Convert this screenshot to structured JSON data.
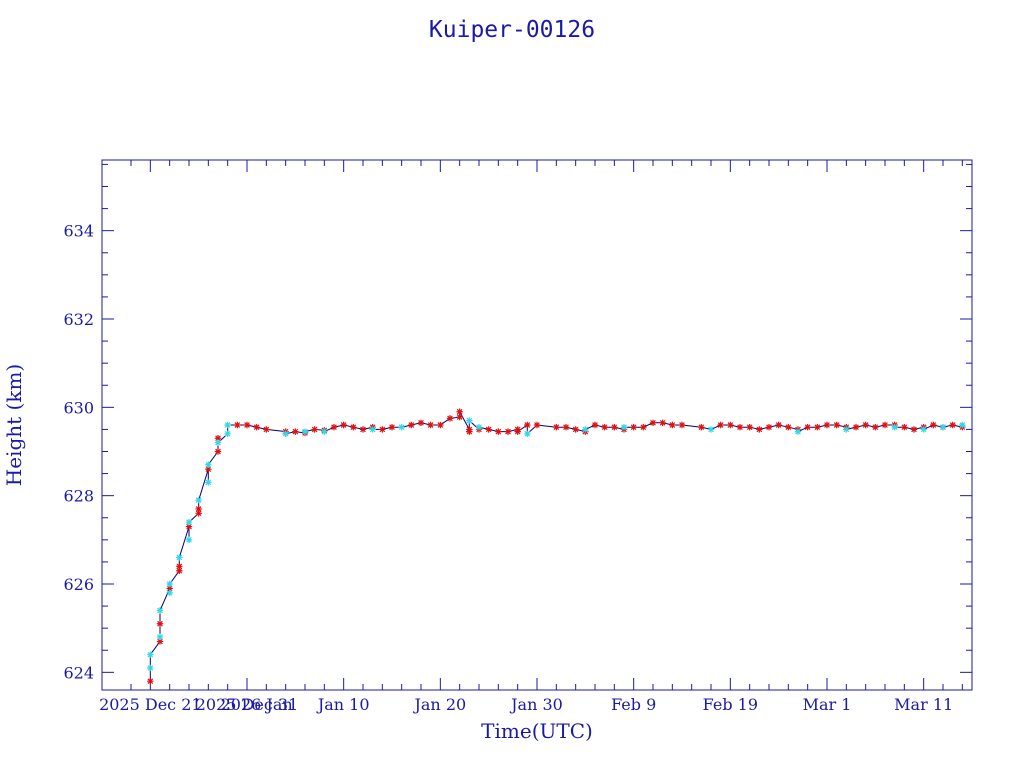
{
  "chart_data": {
    "type": "scatter",
    "title": "Kuiper-00126",
    "xlabel": "Time(UTC)",
    "ylabel": "Height (km)",
    "xlim": [
      "2025-12-16",
      "2026-03-16"
    ],
    "ylim": [
      623.6,
      635.6
    ],
    "x_tick_labels": [
      {
        "date": "2025-12-21",
        "label": "2025 Dec 21"
      },
      {
        "date": "2025-12-31",
        "label": "2025 Dec 31"
      },
      {
        "date": "2026-01-01",
        "label": "2026 Jan"
      },
      {
        "date": "2026-01-10",
        "label": "Jan 10"
      },
      {
        "date": "2026-01-20",
        "label": "Jan 20"
      },
      {
        "date": "2026-01-30",
        "label": "Jan 30"
      },
      {
        "date": "2026-02-09",
        "label": "Feb  9"
      },
      {
        "date": "2026-02-19",
        "label": "Feb 19"
      },
      {
        "date": "2026-03-01",
        "label": "Mar  1"
      },
      {
        "date": "2026-03-11",
        "label": "Mar 11"
      }
    ],
    "y_ticks": [
      624,
      626,
      628,
      630,
      632,
      634
    ],
    "grid": false,
    "colors": {
      "axis": "#1a1aa6",
      "line": "#000080",
      "marker_a": "#e01010",
      "marker_b": "#30d8e8"
    },
    "series": [
      {
        "marker": "star",
        "points": [
          [
            "2025-12-21",
            623.8
          ],
          [
            "2025-12-22",
            624.7
          ],
          [
            "2025-12-22",
            625.1
          ],
          [
            "2025-12-23",
            625.9
          ],
          [
            "2025-12-24",
            626.3
          ],
          [
            "2025-12-24",
            626.4
          ],
          [
            "2025-12-25",
            627.3
          ],
          [
            "2025-12-26",
            627.6
          ],
          [
            "2025-12-26",
            627.7
          ],
          [
            "2025-12-27",
            628.6
          ],
          [
            "2025-12-28",
            629.0
          ],
          [
            "2025-12-28",
            629.3
          ],
          [
            "2025-12-30",
            629.6
          ],
          [
            "2025-12-31",
            629.6
          ],
          [
            "2026-01-01",
            629.55
          ],
          [
            "2026-01-02",
            629.5
          ],
          [
            "2026-01-04",
            629.45
          ],
          [
            "2026-01-05",
            629.45
          ],
          [
            "2026-01-06",
            629.42
          ],
          [
            "2026-01-07",
            629.5
          ],
          [
            "2026-01-08",
            629.48
          ],
          [
            "2026-01-09",
            629.55
          ],
          [
            "2026-01-10",
            629.6
          ],
          [
            "2026-01-11",
            629.55
          ],
          [
            "2026-01-12",
            629.5
          ],
          [
            "2026-01-13",
            629.55
          ],
          [
            "2026-01-14",
            629.5
          ],
          [
            "2026-01-15",
            629.55
          ],
          [
            "2026-01-17",
            629.6
          ],
          [
            "2026-01-18",
            629.65
          ],
          [
            "2026-01-19",
            629.6
          ],
          [
            "2026-01-20",
            629.6
          ],
          [
            "2026-01-21",
            629.75
          ],
          [
            "2026-01-22",
            629.78
          ],
          [
            "2026-01-22",
            629.9
          ],
          [
            "2026-01-23",
            629.5
          ],
          [
            "2026-01-23",
            629.45
          ],
          [
            "2026-01-24",
            629.5
          ],
          [
            "2026-01-25",
            629.5
          ],
          [
            "2026-01-26",
            629.45
          ],
          [
            "2026-01-27",
            629.45
          ],
          [
            "2026-01-28",
            629.5
          ],
          [
            "2026-01-28",
            629.45
          ],
          [
            "2026-01-29",
            629.6
          ],
          [
            "2026-01-30",
            629.6
          ],
          [
            "2026-02-01",
            629.55
          ],
          [
            "2026-02-02",
            629.55
          ],
          [
            "2026-02-03",
            629.5
          ],
          [
            "2026-02-04",
            629.45
          ],
          [
            "2026-02-05",
            629.6
          ],
          [
            "2026-02-06",
            629.55
          ],
          [
            "2026-02-07",
            629.55
          ],
          [
            "2026-02-08",
            629.5
          ],
          [
            "2026-02-09",
            629.55
          ],
          [
            "2026-02-10",
            629.55
          ],
          [
            "2026-02-11",
            629.65
          ],
          [
            "2026-02-12",
            629.65
          ],
          [
            "2026-02-13",
            629.6
          ],
          [
            "2026-02-14",
            629.6
          ],
          [
            "2026-02-16",
            629.55
          ],
          [
            "2026-02-18",
            629.6
          ],
          [
            "2026-02-19",
            629.6
          ],
          [
            "2026-02-20",
            629.55
          ],
          [
            "2026-02-21",
            629.55
          ],
          [
            "2026-02-22",
            629.5
          ],
          [
            "2026-02-23",
            629.55
          ],
          [
            "2026-02-24",
            629.6
          ],
          [
            "2026-02-25",
            629.55
          ],
          [
            "2026-02-26",
            629.5
          ],
          [
            "2026-02-27",
            629.55
          ],
          [
            "2026-02-28",
            629.55
          ],
          [
            "2026-03-01",
            629.6
          ],
          [
            "2026-03-02",
            629.6
          ],
          [
            "2026-03-03",
            629.55
          ],
          [
            "2026-03-04",
            629.55
          ],
          [
            "2026-03-05",
            629.6
          ],
          [
            "2026-03-06",
            629.55
          ],
          [
            "2026-03-07",
            629.6
          ],
          [
            "2026-03-08",
            629.6
          ],
          [
            "2026-03-09",
            629.55
          ],
          [
            "2026-03-10",
            629.5
          ],
          [
            "2026-03-11",
            629.55
          ],
          [
            "2026-03-12",
            629.6
          ],
          [
            "2026-03-13",
            629.55
          ],
          [
            "2026-03-14",
            629.6
          ],
          [
            "2026-03-15",
            629.55
          ]
        ]
      },
      {
        "marker": "star",
        "points": [
          [
            "2025-12-21",
            624.1
          ],
          [
            "2025-12-21",
            624.4
          ],
          [
            "2025-12-22",
            624.8
          ],
          [
            "2025-12-22",
            625.4
          ],
          [
            "2025-12-23",
            625.8
          ],
          [
            "2025-12-23",
            626.0
          ],
          [
            "2025-12-24",
            626.6
          ],
          [
            "2025-12-25",
            627.0
          ],
          [
            "2025-12-25",
            627.4
          ],
          [
            "2025-12-26",
            627.9
          ],
          [
            "2025-12-27",
            628.3
          ],
          [
            "2025-12-27",
            628.7
          ],
          [
            "2025-12-28",
            629.2
          ],
          [
            "2025-12-29",
            629.4
          ],
          [
            "2025-12-29",
            629.6
          ],
          [
            "2026-01-04",
            629.4
          ],
          [
            "2026-01-06",
            629.45
          ],
          [
            "2026-01-08",
            629.45
          ],
          [
            "2026-01-13",
            629.5
          ],
          [
            "2026-01-16",
            629.55
          ],
          [
            "2026-01-23",
            629.7
          ],
          [
            "2026-01-24",
            629.55
          ],
          [
            "2026-01-29",
            629.4
          ],
          [
            "2026-02-04",
            629.5
          ],
          [
            "2026-02-08",
            629.55
          ],
          [
            "2026-02-17",
            629.5
          ],
          [
            "2026-02-26",
            629.45
          ],
          [
            "2026-03-03",
            629.5
          ],
          [
            "2026-03-08",
            629.55
          ],
          [
            "2026-03-11",
            629.5
          ],
          [
            "2026-03-13",
            629.55
          ],
          [
            "2026-03-15",
            629.6
          ]
        ]
      }
    ]
  }
}
